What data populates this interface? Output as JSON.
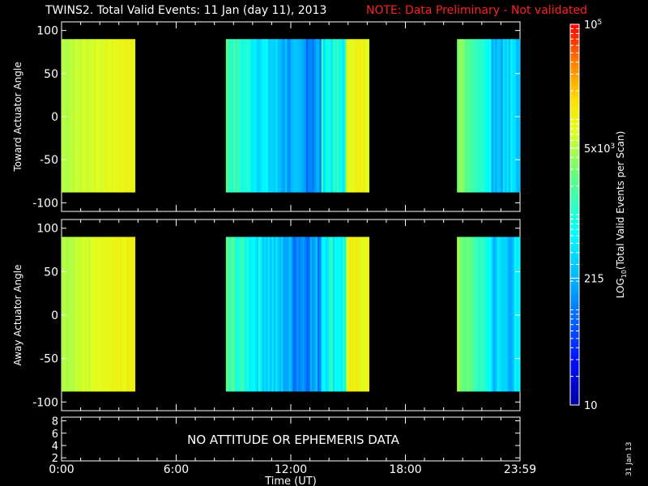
{
  "title": "TWINS2. Total Valid Events: 11 Jan (day  11), 2013",
  "note": "NOTE: Data Preliminary - Not validated",
  "date_stamp": "31 Jan 13",
  "colors": {
    "background": "#000000",
    "axis": "#ffffff",
    "note": "#ff2020"
  },
  "chart_data": [
    {
      "type": "heatmap",
      "ylabel": "Toward Actuator Angle",
      "ylim": [
        -110,
        110
      ],
      "yticks": [
        "100",
        "50",
        "0",
        "-50",
        "-100"
      ],
      "data_y_range": [
        -88,
        90
      ],
      "data_segments_hours": [
        [
          0.0,
          3.85
        ],
        [
          8.6,
          16.1
        ],
        [
          20.7,
          24.0
        ]
      ]
    },
    {
      "type": "heatmap",
      "ylabel": "Away Actuator Angle",
      "ylim": [
        -110,
        110
      ],
      "yticks": [
        "100",
        "50",
        "0",
        "-50",
        "-100"
      ],
      "data_y_range": [
        -88,
        90
      ],
      "data_segments_hours": [
        [
          0.0,
          3.85
        ],
        [
          8.6,
          16.1
        ],
        [
          20.7,
          24.0
        ]
      ]
    },
    {
      "type": "table",
      "yticks": [
        "8",
        "6",
        "4",
        "2"
      ],
      "message": "NO ATTITUDE OR EPHEMERIS DATA"
    }
  ],
  "xaxis": {
    "label": "Time (UT)",
    "ticks": [
      "0:00",
      "6:00",
      "12:00",
      "18:00",
      "23:59"
    ],
    "range_hours": [
      0,
      24
    ]
  },
  "colorbar": {
    "label": "LOG10(Total Valid Events per Scan)",
    "label_main": "LOG",
    "label_sub": "10",
    "label_rest": "(Total Valid Events per Scan)",
    "scale": "log",
    "range": [
      10,
      100000
    ],
    "tick_labels": [
      {
        "value": 100000,
        "base": "10",
        "sup": "5"
      },
      {
        "value": 5000,
        "base": "5x10",
        "sup": "3"
      },
      {
        "value": 215,
        "base": "215",
        "sup": ""
      },
      {
        "value": 10,
        "base": "10",
        "sup": ""
      }
    ]
  }
}
